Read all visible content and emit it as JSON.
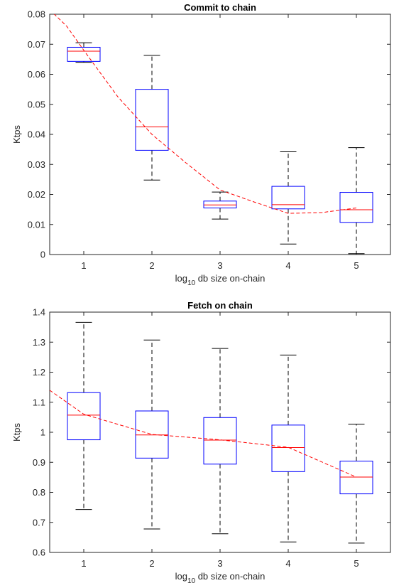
{
  "chart_data": [
    {
      "type": "box",
      "title": "Commit to chain",
      "xlabel_prefix": "log",
      "xlabel_subscript": "10",
      "xlabel_suffix": " db size on-chain",
      "ylabel": "Ktps",
      "ylim": [
        0,
        0.08
      ],
      "yticks": [
        0,
        0.01,
        0.02,
        0.03,
        0.04,
        0.05,
        0.06,
        0.07,
        0.08
      ],
      "ytick_labels": [
        "0",
        "0.01",
        "0.02",
        "0.03",
        "0.04",
        "0.05",
        "0.06",
        "0.07",
        "0.08"
      ],
      "xlim": [
        0.5,
        5.5
      ],
      "categories": [
        "1",
        "2",
        "3",
        "4",
        "5"
      ],
      "boxes": [
        {
          "x": 1,
          "min": 0.064,
          "q1": 0.0643,
          "median": 0.0677,
          "q3": 0.069,
          "max": 0.0705
        },
        {
          "x": 2,
          "min": 0.0248,
          "q1": 0.0347,
          "median": 0.0425,
          "q3": 0.055,
          "max": 0.0663
        },
        {
          "x": 3,
          "min": 0.0118,
          "q1": 0.0155,
          "median": 0.0165,
          "q3": 0.0178,
          "max": 0.0208
        },
        {
          "x": 4,
          "min": 0.0035,
          "q1": 0.0152,
          "median": 0.0166,
          "q3": 0.0227,
          "max": 0.0342
        },
        {
          "x": 5,
          "min": 0.0003,
          "q1": 0.0107,
          "median": 0.0149,
          "q3": 0.0207,
          "max": 0.0356
        }
      ],
      "trend": {
        "x": [
          0.5,
          0.75,
          1.0,
          1.5,
          2.0,
          2.5,
          3.0,
          3.5,
          4.0,
          4.5,
          5.0
        ],
        "y": [
          0.0815,
          0.076,
          0.068,
          0.0525,
          0.04,
          0.0305,
          0.0215,
          0.0175,
          0.0137,
          0.014,
          0.0155
        ]
      },
      "colors": {
        "box": "#0000ff",
        "median": "#ff0000",
        "whisker": "#000000",
        "trend": "#ff0000"
      }
    },
    {
      "type": "box",
      "title": "Fetch on chain",
      "xlabel_prefix": "log",
      "xlabel_subscript": "10",
      "xlabel_suffix": " db size on-chain",
      "ylabel": "Ktps",
      "ylim": [
        0.6,
        1.4
      ],
      "yticks": [
        0.6,
        0.7,
        0.8,
        0.9,
        1.0,
        1.1,
        1.2,
        1.3,
        1.4
      ],
      "ytick_labels": [
        "0.6",
        "0.7",
        "0.8",
        "0.9",
        "1",
        "1.1",
        "1.2",
        "1.3",
        "1.4"
      ],
      "xlim": [
        0.5,
        5.5
      ],
      "categories": [
        "1",
        "2",
        "3",
        "4",
        "5"
      ],
      "boxes": [
        {
          "x": 1,
          "min": 0.743,
          "q1": 0.975,
          "median": 1.057,
          "q3": 1.132,
          "max": 1.366
        },
        {
          "x": 2,
          "min": 0.678,
          "q1": 0.914,
          "median": 0.991,
          "q3": 1.071,
          "max": 1.307
        },
        {
          "x": 3,
          "min": 0.662,
          "q1": 0.894,
          "median": 0.974,
          "q3": 1.049,
          "max": 1.279
        },
        {
          "x": 4,
          "min": 0.635,
          "q1": 0.869,
          "median": 0.949,
          "q3": 1.024,
          "max": 1.257
        },
        {
          "x": 5,
          "min": 0.631,
          "q1": 0.795,
          "median": 0.851,
          "q3": 0.904,
          "max": 1.027
        }
      ],
      "trend": {
        "x": [
          0.5,
          1.0,
          2.0,
          3.0,
          4.0,
          5.0
        ],
        "y": [
          1.14,
          1.06,
          0.993,
          0.975,
          0.95,
          0.851
        ]
      },
      "colors": {
        "box": "#0000ff",
        "median": "#ff0000",
        "whisker": "#000000",
        "trend": "#ff0000"
      }
    }
  ]
}
